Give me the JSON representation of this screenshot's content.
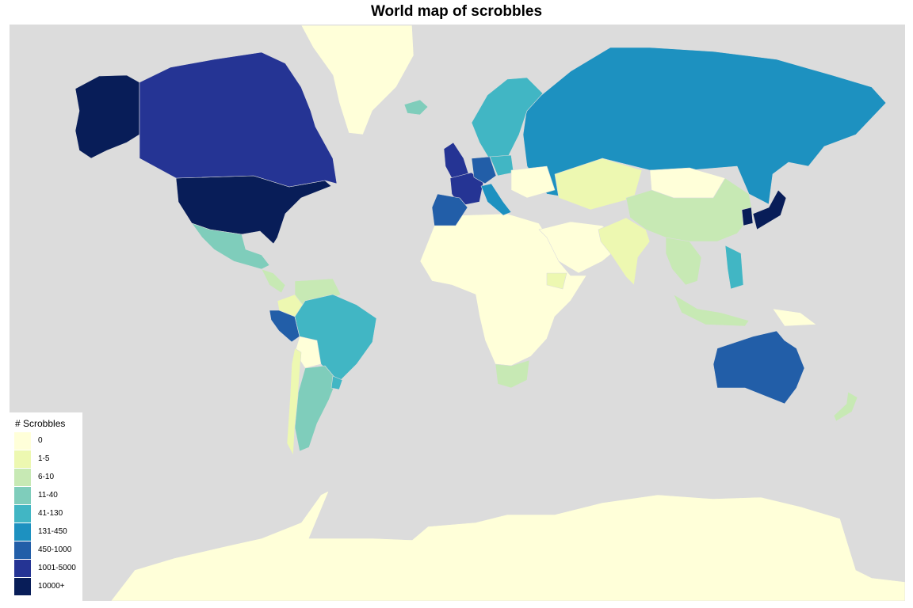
{
  "title": "World map of scrobbles",
  "legend": {
    "title": "# Scrobbles",
    "items": [
      {
        "label": "0",
        "color": "#ffffd9"
      },
      {
        "label": "1-5",
        "color": "#edf8b1"
      },
      {
        "label": "6-10",
        "color": "#c7e9b4"
      },
      {
        "label": "11-40",
        "color": "#7fcdbb"
      },
      {
        "label": "41-130",
        "color": "#41b6c4"
      },
      {
        "label": "131-450",
        "color": "#1d91c0"
      },
      {
        "label": "450-1000",
        "color": "#225ea8"
      },
      {
        "label": "1001-5000",
        "color": "#253494"
      },
      {
        "label": "10000+",
        "color": "#081d58"
      }
    ]
  },
  "colors": {
    "ocean": "#dcdcdc",
    "background": "#ffffff"
  },
  "regions": [
    {
      "name": "Greenland",
      "bin": "0"
    },
    {
      "name": "Antarctica",
      "bin": "0"
    },
    {
      "name": "Africa",
      "bin": "0"
    },
    {
      "name": "Middle East",
      "bin": "0"
    },
    {
      "name": "Iceland",
      "bin": "11-40"
    },
    {
      "name": "Alaska",
      "bin": "10000+"
    },
    {
      "name": "United States",
      "bin": "10000+"
    },
    {
      "name": "Canada",
      "bin": "1001-5000"
    },
    {
      "name": "Mexico",
      "bin": "11-40"
    },
    {
      "name": "Central America",
      "bin": "6-10"
    },
    {
      "name": "Colombia",
      "bin": "1-5"
    },
    {
      "name": "Venezuela",
      "bin": "6-10"
    },
    {
      "name": "Peru",
      "bin": "450-1000"
    },
    {
      "name": "Brazil",
      "bin": "41-130"
    },
    {
      "name": "Bolivia",
      "bin": "0"
    },
    {
      "name": "Argentina",
      "bin": "11-40"
    },
    {
      "name": "Chile",
      "bin": "1-5"
    },
    {
      "name": "Uruguay",
      "bin": "41-130"
    },
    {
      "name": "Russia",
      "bin": "131-450"
    },
    {
      "name": "Scandinavia",
      "bin": "41-130"
    },
    {
      "name": "United Kingdom",
      "bin": "1001-5000"
    },
    {
      "name": "France",
      "bin": "1001-5000"
    },
    {
      "name": "Spain",
      "bin": "450-1000"
    },
    {
      "name": "Germany",
      "bin": "450-1000"
    },
    {
      "name": "Poland",
      "bin": "41-130"
    },
    {
      "name": "Italy",
      "bin": "131-450"
    },
    {
      "name": "Ukraine",
      "bin": "0"
    },
    {
      "name": "Kazakhstan",
      "bin": "1-5"
    },
    {
      "name": "Mongolia",
      "bin": "0"
    },
    {
      "name": "China",
      "bin": "6-10"
    },
    {
      "name": "India",
      "bin": "1-5"
    },
    {
      "name": "Southeast Asia",
      "bin": "6-10"
    },
    {
      "name": "Philippines",
      "bin": "41-130"
    },
    {
      "name": "Japan",
      "bin": "10000+"
    },
    {
      "name": "South Korea",
      "bin": "10000+"
    },
    {
      "name": "Indonesia",
      "bin": "6-10"
    },
    {
      "name": "Papua New Guinea",
      "bin": "0"
    },
    {
      "name": "Australia",
      "bin": "450-1000"
    },
    {
      "name": "New Zealand",
      "bin": "6-10"
    },
    {
      "name": "South Africa",
      "bin": "6-10"
    },
    {
      "name": "Ethiopia",
      "bin": "1-5"
    }
  ]
}
